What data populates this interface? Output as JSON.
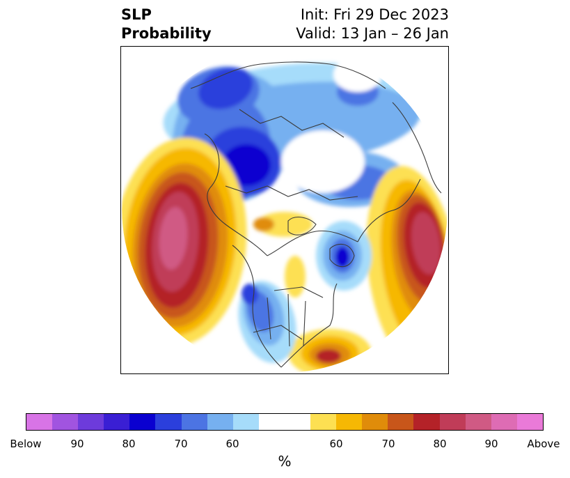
{
  "title": {
    "left_line1": "SLP",
    "left_line2": "Probability",
    "right_line1": "Init: Fri 29 Dec 2023",
    "right_line2": "Valid: 13 Jan – 26 Jan"
  },
  "map": {
    "projection": "north-polar-stereographic",
    "variable": "SLP",
    "below_colors": [
      "#d874e6",
      "#a154e0",
      "#6d3bdb",
      "#3a1fd4",
      "#0a00d0",
      "#2b3fdc",
      "#4c74e3",
      "#76b0f0",
      "#a6dcfa"
    ],
    "above_colors": [
      "#fde052",
      "#f6b804",
      "#e08c0a",
      "#c8561a",
      "#b42228",
      "#c03c58",
      "#d05a84",
      "#de6cb4",
      "#ea7ad8"
    ],
    "neutral_color": "#ffffff",
    "coastline_color": "#3a3a3a"
  },
  "colorbar": {
    "segments": [
      {
        "color": "#d874e6"
      },
      {
        "color": "#a154e0"
      },
      {
        "color": "#6d3bdb"
      },
      {
        "color": "#3a1fd4"
      },
      {
        "color": "#0a00d0"
      },
      {
        "color": "#2b3fdc"
      },
      {
        "color": "#4c74e3"
      },
      {
        "color": "#76b0f0"
      },
      {
        "color": "#a6dcfa"
      },
      {
        "color": "#ffffff",
        "wide": true
      },
      {
        "color": "#fde052"
      },
      {
        "color": "#f6b804"
      },
      {
        "color": "#e08c0a"
      },
      {
        "color": "#c8561a"
      },
      {
        "color": "#b42228"
      },
      {
        "color": "#c03c58"
      },
      {
        "color": "#d05a84"
      },
      {
        "color": "#de6cb4"
      },
      {
        "color": "#ea7ad8"
      }
    ],
    "tick_labels": [
      "Below",
      "90",
      "80",
      "70",
      "60",
      "60",
      "70",
      "80",
      "90",
      "Above"
    ],
    "unit": "%"
  }
}
